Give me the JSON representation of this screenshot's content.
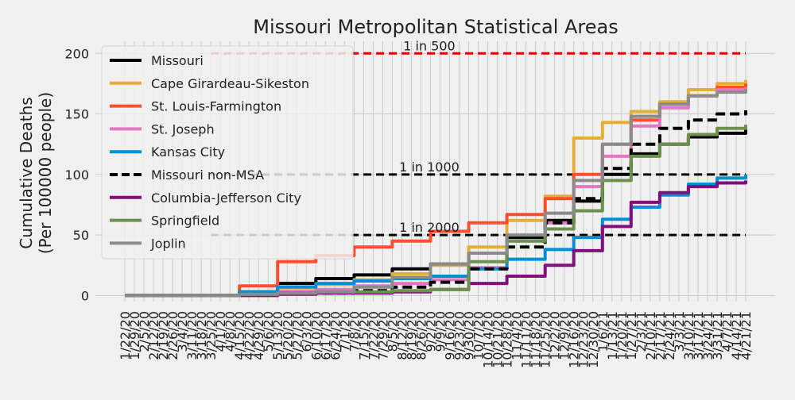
{
  "chart_data": {
    "type": "line",
    "title": "Missouri Metropolitan Statistical Areas",
    "xlabel": "",
    "ylabel": [
      "Cumulative Deaths",
      "(Per 100000 people)"
    ],
    "ylim": [
      -5,
      210
    ],
    "y_ticks": [
      0,
      50,
      100,
      150,
      200
    ],
    "grid": true,
    "legend_position": "top-left",
    "x_tick_labels": [
      "1/22/20",
      "1/29/20",
      "2/5/20",
      "2/12/20",
      "2/19/20",
      "2/26/20",
      "3/4/20",
      "3/11/20",
      "3/18/20",
      "3/25/20",
      "4/1/20",
      "4/8/20",
      "4/15/20",
      "4/22/20",
      "4/29/20",
      "5/6/20",
      "5/13/20",
      "5/20/20",
      "5/27/20",
      "6/3/20",
      "6/10/20",
      "6/17/20",
      "6/24/20",
      "7/1/20",
      "7/8/20",
      "7/15/20",
      "7/22/20",
      "7/29/20",
      "8/5/20",
      "8/12/20",
      "8/19/20",
      "8/26/20",
      "9/2/20",
      "9/9/20",
      "9/16/20",
      "9/23/20",
      "9/30/20",
      "10/7/20",
      "10/14/20",
      "10/21/20",
      "10/28/20",
      "11/4/20",
      "11/11/20",
      "11/18/20",
      "11/25/20",
      "12/2/20",
      "12/9/20",
      "12/16/20",
      "12/23/20",
      "12/30/20",
      "1/6/21",
      "1/13/21",
      "1/20/21",
      "1/27/21",
      "2/3/21",
      "2/10/21",
      "2/17/21",
      "2/24/21",
      "3/3/21",
      "3/10/21",
      "3/17/21",
      "3/24/21",
      "3/31/21",
      "4/7/21",
      "4/14/21",
      "4/21/21"
    ],
    "x": [
      "1/22/20",
      "3/25/20",
      "4/15/20",
      "5/13/20",
      "6/10/20",
      "7/8/20",
      "8/5/20",
      "9/2/20",
      "9/30/20",
      "10/28/20",
      "11/25/20",
      "12/16/20",
      "1/6/21",
      "1/27/21",
      "2/17/21",
      "3/10/21",
      "3/31/21",
      "4/21/21"
    ],
    "series": [
      {
        "name": "Missouri",
        "color": "#000000",
        "dash": false,
        "values": [
          0,
          0,
          3,
          10,
          14,
          17,
          22,
          26,
          35,
          48,
          62,
          78,
          100,
          117,
          125,
          131,
          134,
          137
        ]
      },
      {
        "name": "Cape Girardeau-Sikeston",
        "color": "#e5ae38",
        "dash": false,
        "values": [
          0,
          0,
          1,
          4,
          9,
          13,
          18,
          25,
          40,
          62,
          82,
          130,
          143,
          152,
          160,
          170,
          175,
          178
        ]
      },
      {
        "name": "St. Louis-Farmington",
        "color": "#fc4f30",
        "dash": false,
        "values": [
          0,
          0,
          8,
          28,
          33,
          40,
          45,
          53,
          60,
          67,
          80,
          100,
          125,
          145,
          158,
          165,
          172,
          175
        ]
      },
      {
        "name": "St. Joseph",
        "color": "#e377c2",
        "dash": false,
        "values": [
          0,
          0,
          1,
          3,
          5,
          8,
          10,
          13,
          23,
          45,
          60,
          90,
          115,
          140,
          155,
          165,
          170,
          172
        ]
      },
      {
        "name": "Kansas City",
        "color": "#008fd5",
        "dash": false,
        "values": [
          0,
          0,
          3,
          7,
          10,
          12,
          14,
          16,
          22,
          30,
          38,
          48,
          63,
          73,
          83,
          92,
          97,
          100
        ]
      },
      {
        "name": "Missouri non-MSA",
        "color": "#000000",
        "dash": true,
        "values": [
          0,
          0,
          1,
          2,
          2,
          4,
          7,
          11,
          22,
          40,
          60,
          80,
          105,
          125,
          138,
          145,
          150,
          153
        ]
      },
      {
        "name": "Columbia-Jefferson City",
        "color": "#810f7c",
        "dash": false,
        "values": [
          0,
          0,
          0,
          1,
          2,
          2,
          3,
          5,
          10,
          16,
          25,
          37,
          57,
          77,
          85,
          90,
          93,
          95
        ]
      },
      {
        "name": "Springfield",
        "color": "#6d904f",
        "dash": false,
        "values": [
          0,
          0,
          1,
          2,
          3,
          3,
          4,
          5,
          28,
          45,
          55,
          70,
          95,
          115,
          125,
          133,
          138,
          141
        ]
      },
      {
        "name": "Joplin",
        "color": "#8b8b8b",
        "dash": false,
        "values": [
          0,
          0,
          1,
          2,
          3,
          7,
          15,
          26,
          35,
          50,
          68,
          95,
          125,
          148,
          158,
          165,
          168,
          171
        ]
      }
    ],
    "reference_lines": [
      {
        "value": 200,
        "label": "1 in 500",
        "color": "#e00000"
      },
      {
        "value": 100,
        "label": "1 in 1000",
        "color": "#000000"
      },
      {
        "value": 50,
        "label": "1 in 2000",
        "color": "#000000"
      }
    ]
  }
}
